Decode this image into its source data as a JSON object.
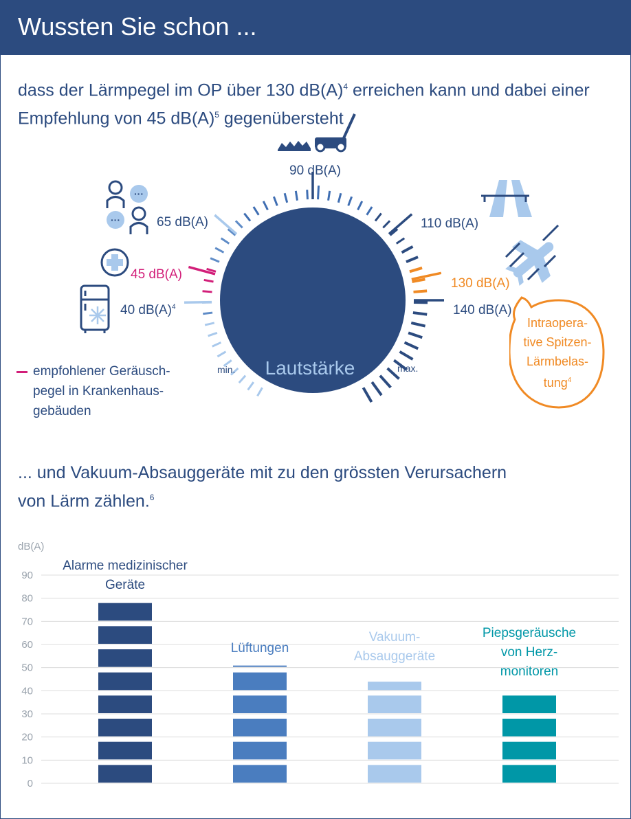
{
  "header": {
    "title": "Wussten Sie schon ..."
  },
  "intro": {
    "line1_pre": "dass der Lärmpegel im OP über 130 dB(A)",
    "sup1": "4",
    "line1_post": " erreichen kann und dabei einer",
    "line2_pre": "Empfehlung von 45 dB(A)",
    "sup2": "5",
    "line2_post": " gegenübersteht"
  },
  "gauge": {
    "labels": {
      "l40": "40 dB(A)",
      "l40_sup": "4",
      "l45": "45 dB(A)",
      "l65": "65 dB(A)",
      "l90": "90 dB(A)",
      "l110": "110 dB(A)",
      "l130": "130 dB(A)",
      "l140": "140 dB(A)"
    },
    "min": "min.",
    "max": "max.",
    "center": "Lautstärke",
    "colors": {
      "dial": "#2c4b7f",
      "light": "#a9c9ec",
      "mid": "#5f8cc7",
      "pink": "#d21e79",
      "orange": "#f08a24"
    }
  },
  "bubble": {
    "line1": "Intraopera-",
    "line2": "tive Spitzen-",
    "line3": "Lärmbelas-",
    "line4": "tung",
    "sup": "4"
  },
  "legend": {
    "line1": "empfohlener Geräusch-",
    "line2": "pegel in Krankenhaus-",
    "line3": "gebäuden"
  },
  "intro2": {
    "line1": "... und Vakuum-Absauggeräte mit zu den grössten Verursachern",
    "line2_pre": "von Lärm zählen.",
    "sup": "6"
  },
  "chart_data": {
    "type": "bar",
    "ylabel": "dB(A)",
    "ylim": [
      0,
      90
    ],
    "yticks": [
      "0",
      "10",
      "20",
      "30",
      "40",
      "50",
      "60",
      "70",
      "80",
      "90"
    ],
    "grid": true,
    "categories": [
      {
        "line1": "Alarme medizinischer",
        "line2": "Geräte",
        "line3": ""
      },
      {
        "line1": "Lüftungen",
        "line2": "",
        "line3": ""
      },
      {
        "line1": "Vakuum-",
        "line2": "Absauggeräte",
        "line3": ""
      },
      {
        "line1": "Piepsgeräusche",
        "line2": "von Herz-",
        "line3": "monitoren"
      }
    ],
    "values": [
      80,
      51,
      46,
      40
    ],
    "colors": [
      "#2c4b7f",
      "#4a7dbf",
      "#a9c9ec",
      "#0097a7"
    ]
  }
}
